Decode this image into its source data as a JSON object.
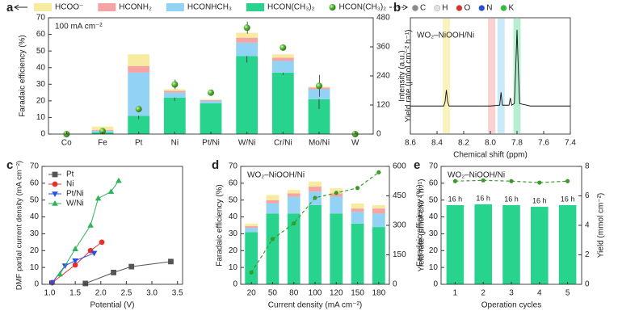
{
  "chart_data": [
    {
      "label": "a",
      "type": "bar",
      "stacked": true,
      "legend": "top",
      "categories": [
        "Co",
        "Fe",
        "Pt",
        "Ni",
        "Pt/Ni",
        "W/Ni",
        "Cr/Ni",
        "Mo/Ni",
        "W"
      ],
      "ylabel": "Faradaic efficiency (%)",
      "y2label": "Yield rate (μmol cm⁻² h⁻¹)",
      "annotation": "100 mA cm⁻²",
      "ylim": [
        0,
        70
      ],
      "yticks": [
        0,
        10,
        20,
        30,
        40,
        50,
        60,
        70
      ],
      "y2lim": [
        0,
        480
      ],
      "y2ticks": [
        0,
        120,
        240,
        360,
        480
      ],
      "series": [
        {
          "name": "HCON(CH₃)₂",
          "color": "#28d38d",
          "values": [
            0,
            1,
            11,
            22,
            18.5,
            47,
            37,
            21,
            0
          ],
          "errors": [
            0,
            0.5,
            2,
            2,
            0,
            4,
            1.5,
            6,
            0
          ]
        },
        {
          "name": "HCONHCH₃",
          "color": "#92d3f5",
          "values": [
            0,
            1,
            26,
            3,
            1.5,
            8,
            7,
            6,
            0
          ]
        },
        {
          "name": "HCONH₂",
          "color": "#f6a3a3",
          "values": [
            0,
            0.5,
            4,
            1,
            0.5,
            3,
            2,
            1,
            0
          ]
        },
        {
          "name": "HCOO⁻",
          "color": "#f7eb9f",
          "values": [
            0,
            2,
            7,
            1,
            0.5,
            3,
            2,
            0.5,
            0
          ]
        },
        {
          "name": "HCON(CH₃)₂",
          "type": "scatter",
          "axis": "y2",
          "color": "#52b52e",
          "values": [
            0,
            12,
            103,
            205,
            171,
            439,
            357,
            199,
            0
          ],
          "errors": [
            0,
            0,
            0,
            20,
            0,
            25,
            0,
            45,
            0
          ]
        }
      ]
    },
    {
      "label": "b",
      "type": "line",
      "annotation": "WO₂–NiOOH/Ni",
      "ylabel": "Intensity (a.u.)",
      "xlabel": "Chemical shift (ppm)",
      "xlim": [
        8.6,
        7.4
      ],
      "xticks": [
        8.6,
        8.4,
        8.2,
        {
          "value": 8,
          "label": "8.0"
        },
        7.8,
        7.6,
        7.4
      ],
      "ylim": [
        -0.3,
        1.15
      ],
      "atoms": [
        {
          "name": "C",
          "color": "#8a8a8a"
        },
        {
          "name": "H",
          "color": "#e0e0e0"
        },
        {
          "name": "O",
          "color": "#e0302a"
        },
        {
          "name": "N",
          "color": "#2450d8"
        },
        {
          "name": "K",
          "color": "#2cc23a"
        }
      ],
      "bands": [
        {
          "center": 8.33,
          "color": "#f7f0b0"
        },
        {
          "center": 7.99,
          "color": "#f9c8c8"
        },
        {
          "center": 7.92,
          "color": "#bfe6f7"
        },
        {
          "center": 7.8,
          "color": "#a8ecc8"
        }
      ],
      "x": [
        8.6,
        8.5,
        8.4,
        8.35,
        8.34,
        8.33,
        8.32,
        8.31,
        8.1,
        8.0,
        7.93,
        7.92,
        7.91,
        7.86,
        7.85,
        7.84,
        7.82,
        7.81,
        7.8,
        7.79,
        7.78,
        7.7,
        7.6,
        7.5,
        7.4
      ],
      "series": [
        {
          "color": "#111111",
          "values": [
            0.05,
            0.05,
            0.05,
            0.05,
            0.1,
            0.25,
            0.1,
            0.05,
            0.05,
            0.05,
            0.06,
            0.22,
            0.06,
            0.06,
            0.15,
            0.06,
            0.08,
            0.5,
            1.0,
            0.5,
            0.08,
            0.05,
            0.05,
            0.05,
            0.05
          ]
        }
      ]
    },
    {
      "label": "c",
      "type": "line",
      "legend": "upper left",
      "ylabel": "DMF partial current density (mA cm⁻²)",
      "xlabel": "Potential (V)",
      "xlim": [
        0.85,
        3.6
      ],
      "xticks": [
        {
          "value": 1,
          "label": "1.0"
        },
        1.5,
        {
          "value": 2,
          "label": "2.0"
        },
        2.5,
        {
          "value": 3,
          "label": "3.0"
        },
        3.5
      ],
      "ylim": [
        0,
        70
      ],
      "yticks": [
        0,
        10,
        20,
        30,
        40,
        50,
        60,
        70
      ],
      "series": [
        {
          "name": "Pt",
          "color": "#555555",
          "marker": "square",
          "x": [
            1.7,
            2.25,
            2.6,
            3.37
          ],
          "values": [
            0.5,
            7,
            10.5,
            13.5
          ]
        },
        {
          "name": "Ni",
          "color": "#e8302a",
          "marker": "circle",
          "x": [
            1.05,
            1.5,
            1.8,
            2.02
          ],
          "values": [
            1,
            11.5,
            20,
            25
          ]
        },
        {
          "name": "Pt/Ni",
          "color": "#2a4ee8",
          "marker": "triangle-down",
          "x": [
            1.05,
            1.3,
            1.5,
            1.87
          ],
          "values": [
            1,
            11,
            14,
            18.5
          ]
        },
        {
          "name": "W/Ni",
          "color": "#2fb45a",
          "marker": "triangle-up",
          "x": [
            1.2,
            1.5,
            1.8,
            1.95,
            2.2,
            2.35
          ],
          "values": [
            6,
            21,
            35,
            51,
            55,
            61.5
          ]
        }
      ]
    },
    {
      "label": "d",
      "type": "bar",
      "stacked": true,
      "annotation": "WO₂–NiOOH/Ni",
      "ylabel": "Faradaic efficiency (%)",
      "y2label": "Yield rate (μmol cm⁻² h⁻¹)",
      "xlabel": "Current density (mA cm⁻²)",
      "categories": [
        "20",
        "50",
        "80",
        "100",
        "120",
        "150",
        "180"
      ],
      "ylim": [
        0,
        70
      ],
      "yticks": [
        0,
        10,
        20,
        30,
        40,
        50,
        60,
        70
      ],
      "y2lim": [
        0,
        600
      ],
      "y2ticks": [
        0,
        150,
        300,
        450,
        600
      ],
      "series": [
        {
          "color": "#28d38d",
          "values": [
            31,
            42,
            42,
            47,
            42,
            36,
            34
          ]
        },
        {
          "color": "#92d3f5",
          "values": [
            2.5,
            6,
            10,
            8,
            10,
            7,
            8
          ]
        },
        {
          "color": "#f6a3a3",
          "values": [
            1,
            2,
            2,
            3,
            2,
            2,
            3
          ]
        },
        {
          "color": "#f7eb9f",
          "values": [
            1.5,
            3,
            2,
            3,
            3,
            3,
            2
          ]
        },
        {
          "type": "line",
          "axis": "y2",
          "color": "#3a9a2a",
          "values": [
            60,
            230,
            310,
            440,
            465,
            490,
            570
          ]
        }
      ]
    },
    {
      "label": "e",
      "type": "bar",
      "stacked": true,
      "annotation": "WO₂–NiOOH/Ni",
      "ylabel": "Faradaic efficiency (%)",
      "y2label": "Yield (mmol cm⁻²)",
      "xlabel": "Operation cycles",
      "categories": [
        "1",
        "2",
        "3",
        "4",
        "5"
      ],
      "bar_labels": [
        "16 h",
        "16 h",
        "16 h",
        "16 h",
        "16 h"
      ],
      "ylim": [
        0,
        70
      ],
      "yticks": [
        0,
        10,
        20,
        30,
        40,
        50,
        60,
        70
      ],
      "y2lim": [
        0,
        8
      ],
      "y2ticks": [
        0,
        2,
        4,
        6,
        8
      ],
      "series": [
        {
          "color": "#28d38d",
          "values": [
            47,
            47.5,
            47,
            46,
            47
          ]
        },
        {
          "type": "line",
          "axis": "y2",
          "color": "#3a9a2a",
          "values": [
            7,
            7.05,
            7,
            6.9,
            7
          ]
        }
      ]
    }
  ]
}
